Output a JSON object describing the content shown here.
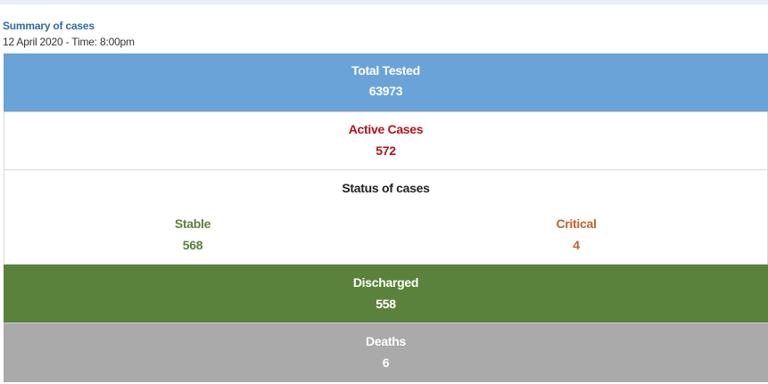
{
  "summary": {
    "title": "Summary of cases",
    "timestamp": "12 April 2020 - Time: 8:00pm"
  },
  "total_tested": {
    "label": "Total Tested",
    "value": "63973"
  },
  "active_cases": {
    "label": "Active Cases",
    "value": "572"
  },
  "status": {
    "title": "Status of cases",
    "stable": {
      "label": "Stable",
      "value": "568"
    },
    "critical": {
      "label": "Critical",
      "value": "4"
    }
  },
  "discharged": {
    "label": "Discharged",
    "value": "558"
  },
  "deaths": {
    "label": "Deaths",
    "value": "6"
  },
  "colors": {
    "tested_bg": "#6aa3d8",
    "active_text": "#b0141b",
    "stable_text": "#5a7f3b",
    "critical_text": "#c0622d",
    "discharged_bg": "#5a823c",
    "deaths_bg": "#aaaaaa",
    "heading_text": "#2f6aa8"
  }
}
